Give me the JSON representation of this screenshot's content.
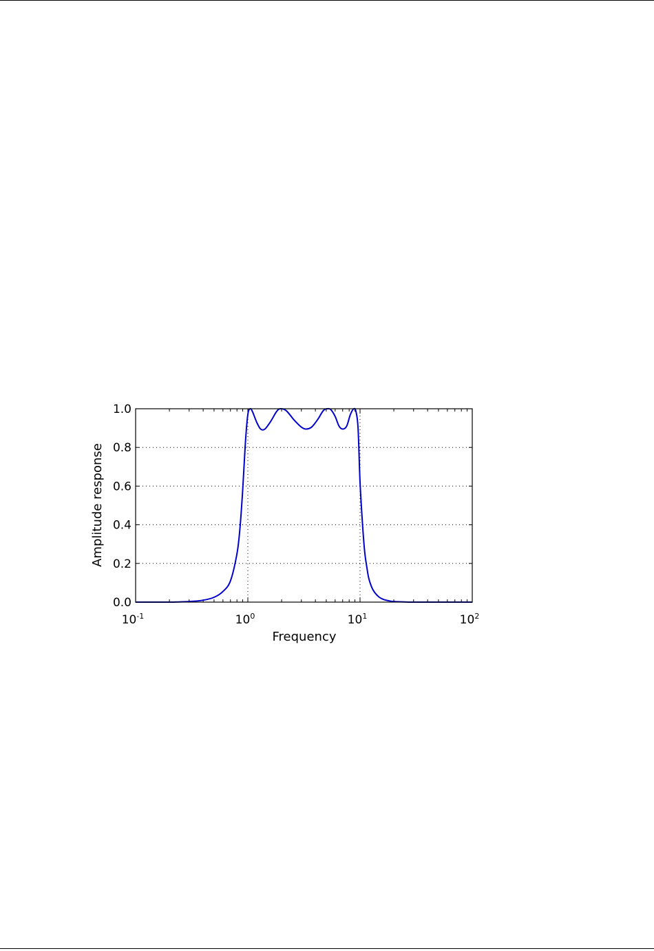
{
  "chart_data": {
    "type": "line",
    "title": "",
    "xlabel": "Frequency",
    "ylabel": "Amplitude response",
    "xscale": "log",
    "xlim": [
      0.1,
      100
    ],
    "ylim": [
      0,
      1
    ],
    "grid": true,
    "grid_style": "dotted",
    "line_color": "#0000cc",
    "xticks": [
      {
        "value": 0.1,
        "base": "10",
        "exp": "-1"
      },
      {
        "value": 1,
        "base": "10",
        "exp": "0"
      },
      {
        "value": 10,
        "base": "10",
        "exp": "1"
      },
      {
        "value": 100,
        "base": "10",
        "exp": "2"
      }
    ],
    "yticks": [
      {
        "value": 0.0,
        "label": "0.0"
      },
      {
        "value": 0.2,
        "label": "0.2"
      },
      {
        "value": 0.4,
        "label": "0.4"
      },
      {
        "value": 0.6,
        "label": "0.6"
      },
      {
        "value": 0.8,
        "label": "0.8"
      },
      {
        "value": 1.0,
        "label": "1.0"
      }
    ],
    "series": [
      {
        "x": [
          0.1,
          0.2,
          0.3,
          0.4,
          0.5,
          0.6,
          0.7,
          0.8,
          0.85,
          0.9,
          0.95,
          1.0,
          1.05,
          1.1,
          1.2,
          1.3,
          1.42,
          1.6,
          1.8,
          1.95,
          2.2,
          2.6,
          3.0,
          3.3,
          3.7,
          4.2,
          4.7,
          5.1,
          5.5,
          6.0,
          6.5,
          7.0,
          7.6,
          8.2,
          8.8,
          9.2,
          9.6,
          10.0,
          10.5,
          11.0,
          11.5,
          12.0,
          13.0,
          14.5,
          16.0,
          18.0,
          20.0,
          25.0,
          30.0,
          50.0,
          100.0
        ],
        "y": [
          0.0,
          0.0,
          0.003,
          0.01,
          0.025,
          0.055,
          0.11,
          0.25,
          0.38,
          0.58,
          0.82,
          0.97,
          1.0,
          0.985,
          0.93,
          0.895,
          0.895,
          0.935,
          0.985,
          1.0,
          0.99,
          0.94,
          0.905,
          0.895,
          0.905,
          0.945,
          0.99,
          1.0,
          0.995,
          0.96,
          0.91,
          0.895,
          0.91,
          0.97,
          1.0,
          0.985,
          0.9,
          0.62,
          0.41,
          0.26,
          0.18,
          0.12,
          0.065,
          0.03,
          0.015,
          0.007,
          0.003,
          0.001,
          0.0,
          0.0,
          0.0
        ]
      }
    ]
  }
}
